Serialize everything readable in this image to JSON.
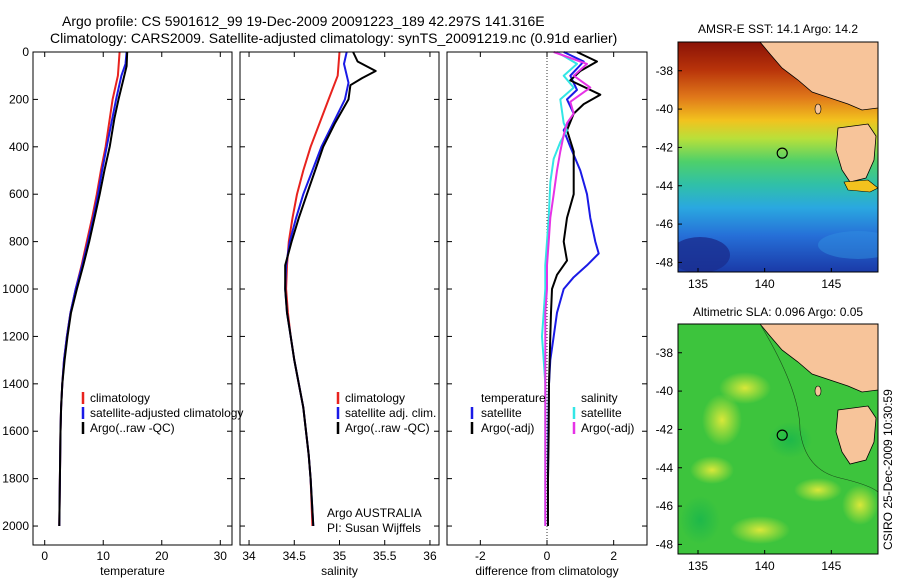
{
  "figure_title": {
    "line1": "Argo profile: CS 5901612_99 19-Dec-2009 20091223_189 42.297S 141.316E",
    "line2": "Climatology: CARS2009. Satellite-adjusted climatology: synTS_20091219.nc (0.91d earlier)"
  },
  "side_label": "CSIRO 25-Dec-2009 10:30:59",
  "colors": {
    "climatology": "#e8231e",
    "satellite": "#1a1ae6",
    "argo": "#000000",
    "salinity_satellite": "#33e6e6",
    "salinity_argo": "#e633e6",
    "land": "#f7c49a"
  },
  "chart_data": [
    {
      "type": "line",
      "xlabel": "temperature",
      "xlim": [
        -2,
        32
      ],
      "xticks": [
        0,
        10,
        20,
        30
      ],
      "ylim": [
        0,
        2080
      ],
      "yticks": [
        0,
        200,
        400,
        600,
        800,
        1000,
        1200,
        1400,
        1600,
        1800,
        2000
      ],
      "legend": [
        "climatology",
        "satellite-adjusted climatology",
        "Argo(..raw -QC)"
      ],
      "series": [
        {
          "name": "climatology",
          "color": "climatology",
          "points": [
            [
              12.8,
              0
            ],
            [
              12.5,
              100
            ],
            [
              11.6,
              200
            ],
            [
              11.0,
              300
            ],
            [
              10.4,
              400
            ],
            [
              9.6,
              500
            ],
            [
              8.9,
              600
            ],
            [
              8.1,
              700
            ],
            [
              7.2,
              800
            ],
            [
              6.3,
              900
            ],
            [
              5.3,
              1000
            ],
            [
              4.4,
              1100
            ],
            [
              3.8,
              1200
            ],
            [
              3.3,
              1300
            ],
            [
              3.0,
              1400
            ],
            [
              2.8,
              1500
            ],
            [
              2.7,
              1600
            ],
            [
              2.6,
              1800
            ],
            [
              2.5,
              2000
            ]
          ]
        },
        {
          "name": "satellite-adjusted climatology",
          "color": "satellite",
          "points": [
            [
              14.0,
              0
            ],
            [
              13.8,
              50
            ],
            [
              13.1,
              100
            ],
            [
              12.2,
              200
            ],
            [
              11.4,
              300
            ],
            [
              10.6,
              400
            ],
            [
              9.8,
              500
            ],
            [
              9.1,
              600
            ],
            [
              8.3,
              700
            ],
            [
              7.4,
              800
            ],
            [
              6.4,
              900
            ],
            [
              5.3,
              1000
            ],
            [
              4.4,
              1100
            ],
            [
              3.8,
              1200
            ],
            [
              3.3,
              1300
            ],
            [
              3.0,
              1400
            ],
            [
              2.8,
              1500
            ],
            [
              2.7,
              1600
            ],
            [
              2.6,
              1800
            ],
            [
              2.5,
              2000
            ]
          ]
        },
        {
          "name": "Argo(..raw -QC)",
          "color": "argo",
          "points": [
            [
              14.1,
              0
            ],
            [
              14.0,
              60
            ],
            [
              13.5,
              110
            ],
            [
              12.6,
              200
            ],
            [
              11.9,
              280
            ],
            [
              11.1,
              400
            ],
            [
              10.2,
              500
            ],
            [
              9.4,
              600
            ],
            [
              8.5,
              700
            ],
            [
              7.6,
              800
            ],
            [
              6.6,
              900
            ],
            [
              5.5,
              1000
            ],
            [
              4.5,
              1100
            ],
            [
              3.9,
              1200
            ],
            [
              3.4,
              1300
            ],
            [
              3.0,
              1400
            ],
            [
              2.8,
              1500
            ],
            [
              2.7,
              1600
            ],
            [
              2.6,
              1800
            ],
            [
              2.5,
              2000
            ]
          ]
        }
      ]
    },
    {
      "type": "line",
      "xlabel": "salinity",
      "xlim": [
        33.9,
        36.1
      ],
      "xticks": [
        34,
        34.5,
        35,
        35.5,
        36
      ],
      "ylim": [
        0,
        2080
      ],
      "legend": [
        "climatology",
        "satellite adj. clim.",
        "Argo(..raw -QC)"
      ],
      "annotation": [
        "Argo AUSTRALIA",
        "PI: Susan Wijffels"
      ],
      "series": [
        {
          "name": "climatology",
          "color": "climatology",
          "points": [
            [
              35.0,
              0
            ],
            [
              34.98,
              100
            ],
            [
              34.88,
              200
            ],
            [
              34.78,
              300
            ],
            [
              34.68,
              400
            ],
            [
              34.6,
              500
            ],
            [
              34.53,
              600
            ],
            [
              34.48,
              700
            ],
            [
              34.44,
              800
            ],
            [
              34.42,
              900
            ],
            [
              34.41,
              1000
            ],
            [
              34.43,
              1100
            ],
            [
              34.46,
              1200
            ],
            [
              34.5,
              1300
            ],
            [
              34.55,
              1400
            ],
            [
              34.6,
              1500
            ],
            [
              34.63,
              1600
            ],
            [
              34.66,
              1700
            ],
            [
              34.68,
              1800
            ],
            [
              34.7,
              2000
            ]
          ]
        },
        {
          "name": "satellite adj. clim.",
          "color": "satellite",
          "points": [
            [
              35.08,
              0
            ],
            [
              35.05,
              50
            ],
            [
              35.1,
              130
            ],
            [
              35.06,
              200
            ],
            [
              34.93,
              300
            ],
            [
              34.8,
              400
            ],
            [
              34.7,
              500
            ],
            [
              34.6,
              600
            ],
            [
              34.52,
              700
            ],
            [
              34.45,
              800
            ],
            [
              34.41,
              900
            ],
            [
              34.4,
              1000
            ],
            [
              34.42,
              1100
            ],
            [
              34.46,
              1200
            ],
            [
              34.5,
              1300
            ],
            [
              34.55,
              1400
            ],
            [
              34.6,
              1500
            ],
            [
              34.63,
              1600
            ],
            [
              34.66,
              1700
            ],
            [
              34.68,
              1800
            ],
            [
              34.71,
              2000
            ]
          ]
        },
        {
          "name": "Argo(..raw -QC)",
          "color": "argo",
          "points": [
            [
              35.15,
              0
            ],
            [
              35.2,
              40
            ],
            [
              35.3,
              60
            ],
            [
              35.4,
              80
            ],
            [
              35.25,
              110
            ],
            [
              35.12,
              140
            ],
            [
              35.1,
              200
            ],
            [
              34.95,
              300
            ],
            [
              34.82,
              400
            ],
            [
              34.73,
              500
            ],
            [
              34.64,
              600
            ],
            [
              34.55,
              700
            ],
            [
              34.47,
              800
            ],
            [
              34.4,
              900
            ],
            [
              34.4,
              1000
            ],
            [
              34.42,
              1100
            ],
            [
              34.46,
              1200
            ],
            [
              34.5,
              1300
            ],
            [
              34.55,
              1400
            ],
            [
              34.6,
              1500
            ],
            [
              34.63,
              1600
            ],
            [
              34.66,
              1700
            ],
            [
              34.68,
              1800
            ],
            [
              34.71,
              2000
            ]
          ]
        }
      ]
    },
    {
      "type": "line",
      "xlabel": "difference from climatology",
      "xlim": [
        -3,
        3
      ],
      "xticks": [
        -2,
        0,
        2
      ],
      "ylim": [
        0,
        2080
      ],
      "legend_groups": [
        {
          "heading": "temperature",
          "entries": [
            "satellite",
            "Argo(-adj)"
          ]
        },
        {
          "heading": "salinity",
          "entries": [
            "satellite",
            "Argo(-adj)"
          ]
        }
      ],
      "series": [
        {
          "name": "temperature satellite",
          "color": "satellite",
          "points": [
            [
              0.5,
              0
            ],
            [
              1.1,
              40
            ],
            [
              0.7,
              100
            ],
            [
              0.9,
              160
            ],
            [
              0.6,
              200
            ],
            [
              0.8,
              260
            ],
            [
              0.5,
              330
            ],
            [
              0.7,
              400
            ],
            [
              1.0,
              500
            ],
            [
              1.2,
              600
            ],
            [
              1.3,
              700
            ],
            [
              1.45,
              800
            ],
            [
              1.55,
              850
            ],
            [
              1.2,
              900
            ],
            [
              0.8,
              950
            ],
            [
              0.5,
              1000
            ],
            [
              0.3,
              1100
            ],
            [
              0.2,
              1200
            ],
            [
              0.1,
              1300
            ],
            [
              0.06,
              1400
            ],
            [
              0.04,
              1600
            ],
            [
              0.03,
              1800
            ],
            [
              0.03,
              2000
            ]
          ]
        },
        {
          "name": "temperature Argo(-adj)",
          "color": "argo",
          "points": [
            [
              0.9,
              0
            ],
            [
              1.5,
              40
            ],
            [
              1.0,
              80
            ],
            [
              0.7,
              120
            ],
            [
              1.6,
              180
            ],
            [
              1.1,
              220
            ],
            [
              0.8,
              260
            ],
            [
              0.6,
              330
            ],
            [
              0.8,
              420
            ],
            [
              0.8,
              600
            ],
            [
              0.6,
              700
            ],
            [
              0.5,
              800
            ],
            [
              0.6,
              880
            ],
            [
              0.3,
              940
            ],
            [
              0.15,
              1000
            ],
            [
              0.12,
              1100
            ],
            [
              0.1,
              1200
            ],
            [
              0.08,
              1300
            ],
            [
              0.06,
              1400
            ],
            [
              0.05,
              1600
            ],
            [
              0.03,
              1800
            ],
            [
              0.03,
              2000
            ]
          ]
        },
        {
          "name": "salinity satellite",
          "color": "salinity_satellite",
          "points": [
            [
              0.3,
              0
            ],
            [
              0.9,
              50
            ],
            [
              0.5,
              100
            ],
            [
              0.8,
              150
            ],
            [
              0.4,
              200
            ],
            [
              0.5,
              300
            ],
            [
              0.6,
              330
            ],
            [
              0.4,
              380
            ],
            [
              0.2,
              450
            ],
            [
              0.1,
              550
            ],
            [
              0.05,
              700
            ],
            [
              0.0,
              800
            ],
            [
              -0.05,
              900
            ],
            [
              -0.05,
              1000
            ],
            [
              -0.1,
              1100
            ],
            [
              -0.15,
              1200
            ],
            [
              -0.1,
              1300
            ],
            [
              -0.05,
              1400
            ],
            [
              -0.05,
              1600
            ],
            [
              -0.05,
              1800
            ],
            [
              -0.05,
              2000
            ]
          ]
        },
        {
          "name": "salinity Argo(-adj)",
          "color": "salinity_argo",
          "points": [
            [
              0.2,
              0
            ],
            [
              1.2,
              50
            ],
            [
              0.8,
              100
            ],
            [
              1.3,
              150
            ],
            [
              0.7,
              210
            ],
            [
              0.8,
              260
            ],
            [
              0.6,
              300
            ],
            [
              0.5,
              350
            ],
            [
              0.4,
              420
            ],
            [
              0.3,
              500
            ],
            [
              0.2,
              600
            ],
            [
              0.1,
              700
            ],
            [
              0.05,
              800
            ],
            [
              0.0,
              900
            ],
            [
              0.0,
              1000
            ],
            [
              -0.05,
              1100
            ],
            [
              -0.05,
              1200
            ],
            [
              -0.05,
              1300
            ],
            [
              -0.05,
              1400
            ],
            [
              -0.05,
              1600
            ],
            [
              -0.05,
              1800
            ],
            [
              -0.05,
              2000
            ]
          ]
        }
      ]
    },
    {
      "type": "heatmap",
      "title": "AMSR-E SST: 14.1  Argo: 14.2",
      "xlim": [
        133.5,
        148.5
      ],
      "ylim": [
        -48.5,
        -36.5
      ],
      "xticks": [
        135,
        140,
        145
      ],
      "yticks": [
        -38,
        -40,
        -42,
        -44,
        -46,
        -48
      ],
      "float_position": [
        141.316,
        -42.297
      ]
    },
    {
      "type": "heatmap",
      "title": "Altimetric SLA: 0.096  Argo: 0.05",
      "xlim": [
        133.5,
        148.5
      ],
      "ylim": [
        -48.5,
        -36.5
      ],
      "xticks": [
        135,
        140,
        145
      ],
      "yticks": [
        -38,
        -40,
        -42,
        -44,
        -46,
        -48
      ],
      "float_position": [
        141.316,
        -42.297
      ]
    }
  ]
}
